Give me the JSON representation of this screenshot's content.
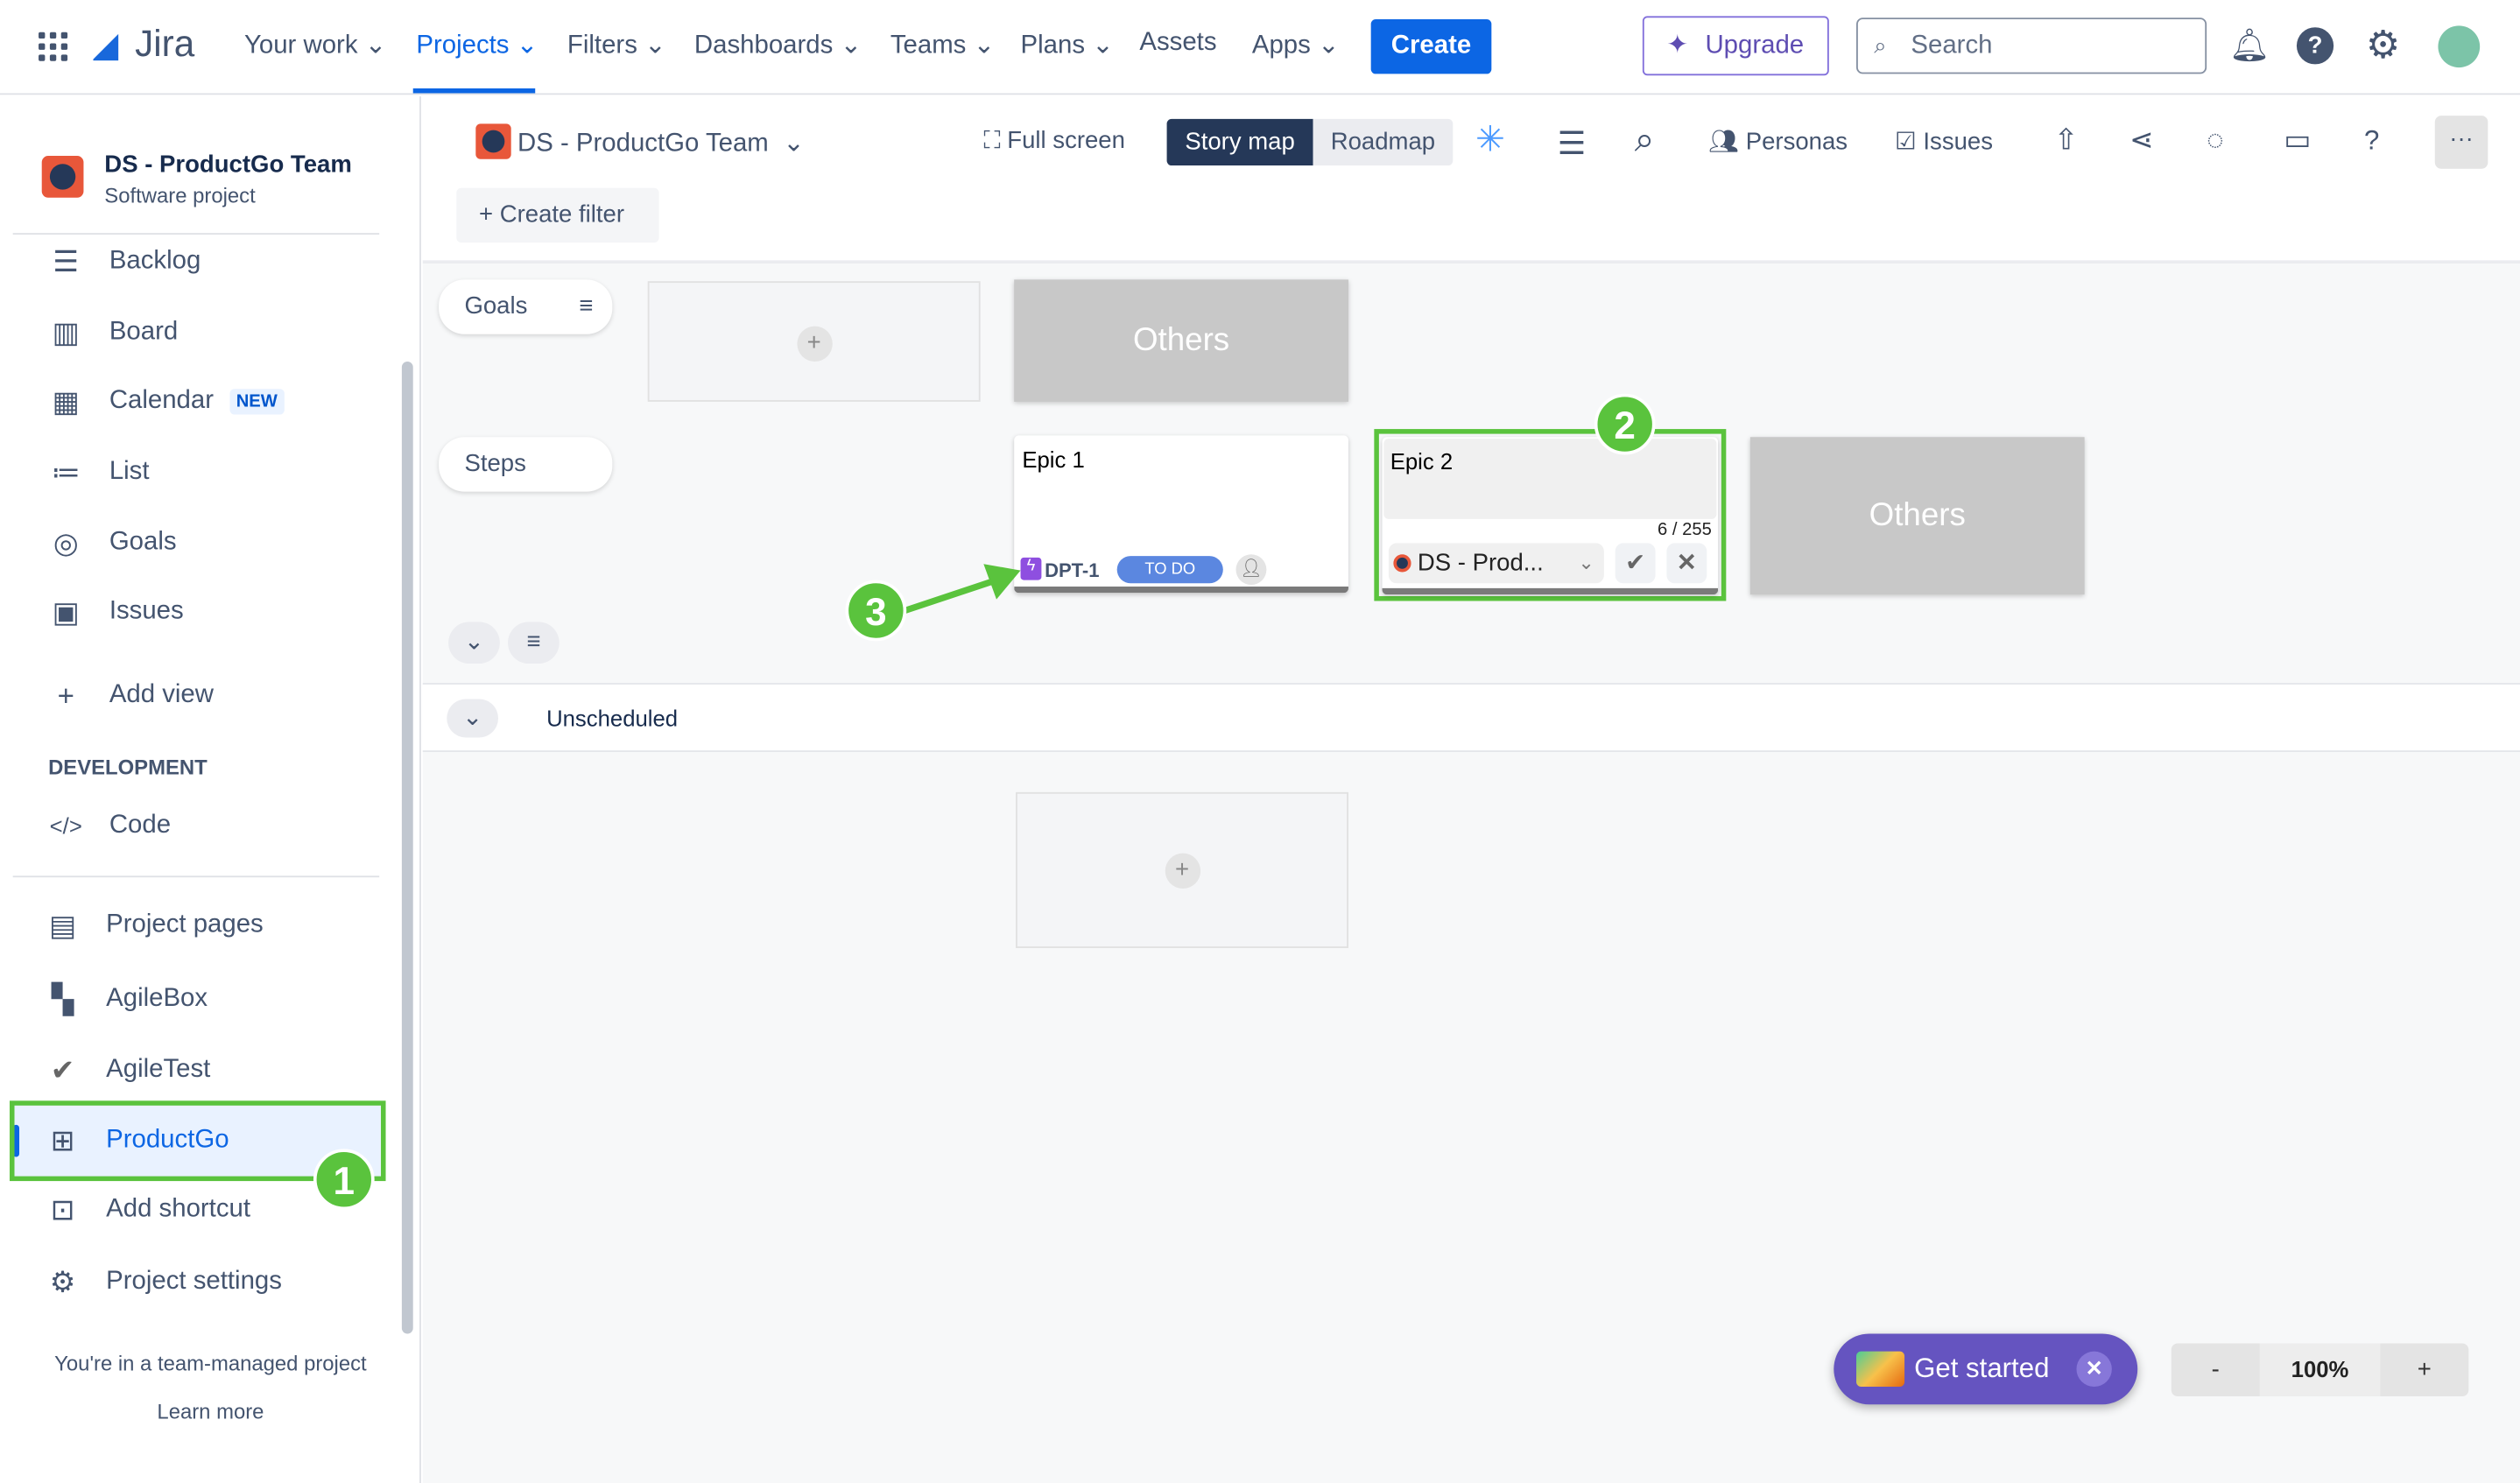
{
  "topnav": {
    "logo": "Jira",
    "items": [
      "Your work",
      "Projects",
      "Filters",
      "Dashboards",
      "Teams",
      "Plans",
      "Assets",
      "Apps"
    ],
    "active": "Projects",
    "create": "Create",
    "upgrade": "Upgrade",
    "search_placeholder": "Search"
  },
  "sidebar": {
    "project_name": "DS - ProductGo Team",
    "project_type": "Software project",
    "items": [
      {
        "label": "Backlog",
        "icon": "backlog-icon"
      },
      {
        "label": "Board",
        "icon": "board-icon"
      },
      {
        "label": "Calendar",
        "icon": "calendar-icon",
        "badge": "NEW"
      },
      {
        "label": "List",
        "icon": "list-icon"
      },
      {
        "label": "Goals",
        "icon": "goals-icon"
      },
      {
        "label": "Issues",
        "icon": "issues-icon"
      },
      {
        "label": "Add view",
        "icon": "plus-icon"
      }
    ],
    "section": "DEVELOPMENT",
    "code": "Code",
    "apps": [
      {
        "label": "Project pages"
      },
      {
        "label": "AgileBox"
      },
      {
        "label": "AgileTest"
      },
      {
        "label": "ProductGo",
        "active": true
      },
      {
        "label": "Add shortcut"
      },
      {
        "label": "Project settings"
      }
    ],
    "footer": "You're in a team-managed project",
    "learn_more": "Learn more"
  },
  "toolbar": {
    "project": "DS - ProductGo Team",
    "fullscreen": "Full screen",
    "story_map": "Story map",
    "roadmap": "Roadmap",
    "personas": "Personas",
    "issues": "Issues",
    "create_filter": "Create filter"
  },
  "board": {
    "goals": "Goals",
    "steps": "Steps",
    "others": "Others",
    "epic1": {
      "title": "Epic 1",
      "key": "DPT-1",
      "status": "TO DO"
    },
    "epic2": {
      "title": "Epic 2",
      "counter": "6 / 255",
      "project": "DS - Prod..."
    },
    "unscheduled": "Unscheduled",
    "get_started": "Get started",
    "zoom": {
      "minus": "-",
      "value": "100%",
      "plus": "+"
    }
  },
  "annotations": [
    "1",
    "2",
    "3"
  ],
  "colors": {
    "accent": "#0c66e4",
    "highlight": "#5ac33d",
    "story_map_bg": "#253858",
    "status_blue": "#5b87e0"
  }
}
